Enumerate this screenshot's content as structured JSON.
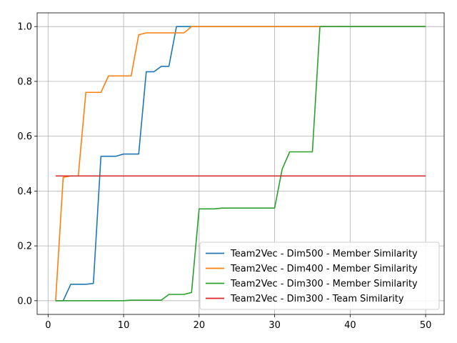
{
  "chart_data": {
    "type": "line",
    "title": "",
    "xlabel": "",
    "ylabel": "",
    "xlim": [
      -1.45,
      52.45
    ],
    "ylim": [
      -0.05,
      1.05
    ],
    "xticks": [
      0,
      10,
      20,
      30,
      40,
      50
    ],
    "xtick_labels": [
      "0",
      "10",
      "20",
      "30",
      "40",
      "50"
    ],
    "yticks": [
      0.0,
      0.2,
      0.4,
      0.6,
      0.8,
      1.0
    ],
    "ytick_labels": [
      "0.0",
      "0.2",
      "0.4",
      "0.6",
      "0.8",
      "1.0"
    ],
    "grid": true,
    "legend_position": "lower-right",
    "series": [
      {
        "name": "Team2Vec - Dim500 - Member Similarity",
        "color": "#1f77b4",
        "x": [
          1,
          2,
          3,
          4,
          5,
          6,
          7,
          8,
          9,
          10,
          11,
          12,
          13,
          14,
          15,
          16,
          17,
          18,
          19,
          20,
          25,
          30,
          35,
          40,
          45,
          50
        ],
        "y": [
          0,
          0,
          0.06,
          0.06,
          0.06,
          0.063,
          0.527,
          0.527,
          0.527,
          0.535,
          0.535,
          0.535,
          0.835,
          0.835,
          0.855,
          0.855,
          1.0,
          1.0,
          1.0,
          1.0,
          1.0,
          1.0,
          1.0,
          1.0,
          1.0,
          1.0
        ]
      },
      {
        "name": "Team2Vec - Dim400 - Member Similarity",
        "color": "#ff7f0e",
        "x": [
          1,
          2,
          3,
          4,
          5,
          6,
          7,
          8,
          9,
          10,
          11,
          12,
          13,
          14,
          15,
          16,
          17,
          18,
          19,
          20,
          25,
          30,
          35,
          40,
          45,
          50
        ],
        "y": [
          0,
          0.45,
          0.455,
          0.455,
          0.76,
          0.76,
          0.76,
          0.82,
          0.82,
          0.82,
          0.82,
          0.97,
          0.977,
          0.977,
          0.977,
          0.977,
          0.977,
          0.977,
          1.0,
          1.0,
          1.0,
          1.0,
          1.0,
          1.0,
          1.0,
          1.0
        ]
      },
      {
        "name": "Team2Vec - Dim300 - Member Similarity",
        "color": "#2ca02c",
        "x": [
          1,
          10,
          11,
          15,
          16,
          17,
          18,
          19,
          20,
          21,
          22,
          23,
          24,
          25,
          26,
          27,
          28,
          29,
          30,
          31,
          32,
          33,
          34,
          35,
          36,
          40,
          45,
          50
        ],
        "y": [
          0,
          0,
          0.002,
          0.002,
          0.023,
          0.023,
          0.023,
          0.03,
          0.335,
          0.335,
          0.335,
          0.338,
          0.338,
          0.338,
          0.338,
          0.338,
          0.338,
          0.338,
          0.338,
          0.48,
          0.543,
          0.543,
          0.543,
          0.543,
          1.0,
          1.0,
          1.0,
          1.0
        ]
      },
      {
        "name": "Team2Vec - Dim300 - Team Similarity",
        "color": "#d62728",
        "x": [
          1,
          50
        ],
        "y": [
          0.455,
          0.455
        ]
      }
    ]
  }
}
